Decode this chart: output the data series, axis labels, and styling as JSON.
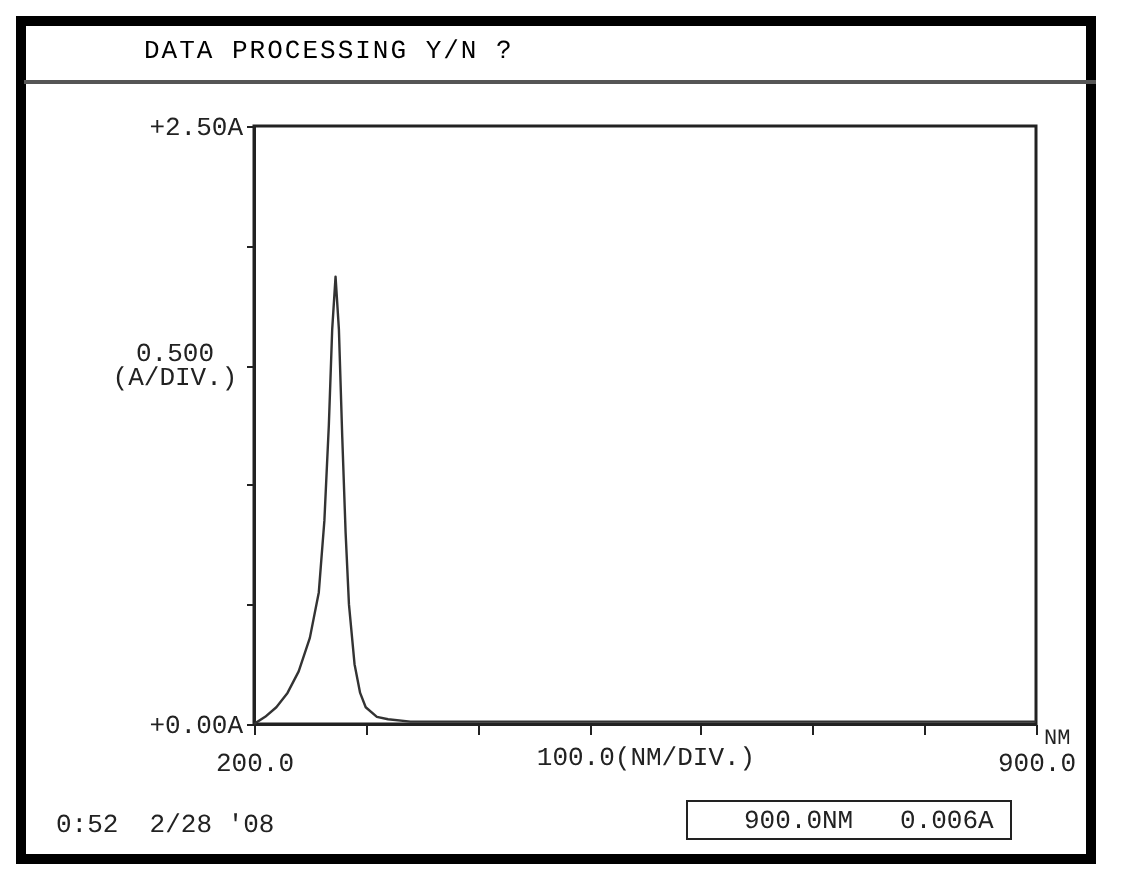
{
  "chart_data": {
    "type": "line",
    "title": "DATA PROCESSING Y/N ?",
    "xlabel": "100.0(NM/DIV.)",
    "ylabel": "0.500\n(A/DIV.)",
    "x": [
      200,
      210,
      220,
      230,
      240,
      250,
      258,
      263,
      267,
      270,
      273,
      276,
      279,
      282,
      285,
      290,
      295,
      300,
      310,
      320,
      340,
      400,
      500,
      600,
      700,
      800,
      900
    ],
    "series": [
      {
        "color": "#333333",
        "values": [
          0.0,
          0.03,
          0.07,
          0.13,
          0.22,
          0.36,
          0.55,
          0.85,
          1.25,
          1.65,
          1.87,
          1.65,
          1.2,
          0.8,
          0.5,
          0.25,
          0.13,
          0.07,
          0.03,
          0.02,
          0.01,
          0.01,
          0.01,
          0.01,
          0.01,
          0.01,
          0.01
        ]
      }
    ],
    "xlim": [
      200,
      900
    ],
    "xticks": [
      {
        "value": 200,
        "label": "200.0"
      },
      {
        "value": 300,
        "label": null
      },
      {
        "value": 400,
        "label": null
      },
      {
        "value": 500,
        "label": null
      },
      {
        "value": 600,
        "label": null
      },
      {
        "value": 700,
        "label": null
      },
      {
        "value": 800,
        "label": null
      },
      {
        "value": 900,
        "label": "900.0"
      }
    ],
    "ylim": [
      0,
      2.5
    ],
    "yticks": [
      {
        "value": 0,
        "label": "+0.00A"
      },
      {
        "value": 0.5,
        "label": null
      },
      {
        "value": 1,
        "label": null
      },
      {
        "value": 1.5,
        "label": null
      },
      {
        "value": 2,
        "label": null
      },
      {
        "value": 2.5,
        "label": "+2.50A"
      }
    ],
    "grid": false,
    "annotations": [
      "NM",
      "0:52  2/28 '08",
      "900.0NM   0.006A"
    ]
  }
}
